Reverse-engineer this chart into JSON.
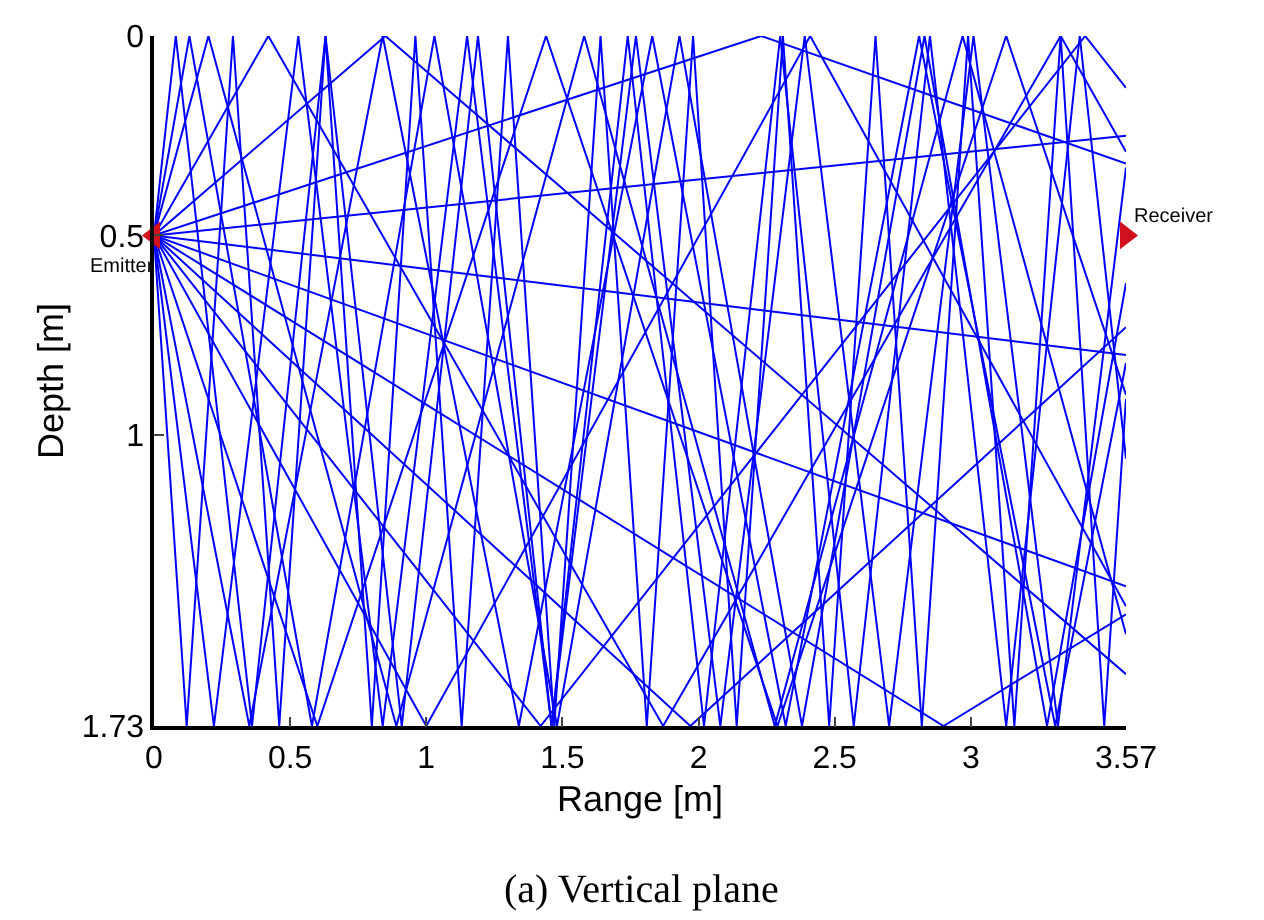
{
  "chart_data": {
    "type": "line",
    "title": "(a) Vertical plane",
    "xlabel": "Range [m]",
    "ylabel": "Depth [m]",
    "xlim": [
      0,
      3.57
    ],
    "xticks": [
      0,
      0.5,
      1,
      1.5,
      2,
      2.5,
      3,
      3.57
    ],
    "ylim": [
      1.73,
      0
    ],
    "yticks": [
      0,
      0.5,
      1,
      1.73
    ],
    "marker": "none",
    "annotations": [
      {
        "text": "Emitter",
        "x": 0,
        "y": 0.5
      },
      {
        "text": "Receiver",
        "x": 3.57,
        "y": 0.5
      }
    ],
    "series": [
      {
        "color": "#0000ff",
        "x": [
          0,
          0.08,
          0.36,
          0.63,
          0.91,
          1.19,
          1.46,
          1.74,
          2.02,
          2.3,
          2.57,
          2.85,
          3.13,
          3.4,
          3.57
        ],
        "values": [
          0.5,
          0,
          1.73,
          0,
          1.73,
          0,
          1.73,
          0,
          1.73,
          0,
          1.73,
          0,
          1.73,
          0,
          1.06
        ]
      },
      {
        "color": "#0000ff",
        "x": [
          0,
          0.13,
          0.58,
          1.03,
          1.48,
          1.93,
          2.38,
          2.83,
          3.28,
          3.57
        ],
        "values": [
          0.5,
          0,
          1.73,
          0,
          1.73,
          0,
          1.73,
          0,
          1.73,
          0.62
        ]
      },
      {
        "color": "#0000ff",
        "x": [
          0,
          0.2,
          0.89,
          1.58,
          2.28,
          2.97,
          3.57
        ],
        "values": [
          0.5,
          0,
          1.73,
          0,
          1.73,
          0,
          1.5
        ]
      },
      {
        "color": "#0000ff",
        "x": [
          0,
          0.42,
          1.87,
          3.33,
          3.57
        ],
        "values": [
          0.5,
          0,
          1.73,
          0,
          0.29
        ]
      },
      {
        "color": "#0000ff",
        "x": [
          0,
          0.85,
          3.57
        ],
        "values": [
          0.5,
          0,
          1.6
        ]
      },
      {
        "color": "#0000ff",
        "x": [
          0,
          2.23,
          3.57
        ],
        "values": [
          0.5,
          0,
          0.32
        ]
      },
      {
        "color": "#0000ff",
        "x": [
          0,
          3.57
        ],
        "values": [
          0.5,
          0.25
        ]
      },
      {
        "color": "#0000ff",
        "x": [
          0,
          3.57
        ],
        "values": [
          0.5,
          0.8
        ]
      },
      {
        "color": "#0000ff",
        "x": [
          0,
          3.57
        ],
        "values": [
          0.5,
          1.38
        ]
      },
      {
        "color": "#0000ff",
        "x": [
          0,
          0.12,
          0.29,
          0.46,
          0.63,
          0.8,
          0.96,
          1.13,
          1.3,
          1.47,
          1.64,
          1.81,
          1.98,
          2.14,
          2.31,
          2.48,
          2.65,
          2.82,
          2.99,
          3.16,
          3.33,
          3.49,
          3.57
        ],
        "values": [
          0.5,
          1.73,
          0,
          1.73,
          0,
          1.73,
          0,
          1.73,
          0,
          1.73,
          0,
          1.73,
          0,
          1.73,
          0,
          1.73,
          0,
          1.73,
          0,
          1.73,
          0,
          1.73,
          0.91
        ]
      },
      {
        "color": "#0000ff",
        "x": [
          0,
          0.22,
          0.53,
          0.84,
          1.15,
          1.46,
          1.77,
          2.08,
          2.39,
          2.7,
          3.01,
          3.32,
          3.57
        ],
        "values": [
          0.5,
          1.73,
          0,
          1.73,
          0,
          1.73,
          0,
          1.73,
          0,
          1.73,
          0,
          1.73,
          0.33
        ]
      },
      {
        "color": "#0000ff",
        "x": [
          0,
          0.35,
          0.84,
          1.34,
          1.83,
          2.32,
          2.81,
          3.31,
          3.57
        ],
        "values": [
          0.5,
          1.73,
          0,
          1.73,
          0,
          1.73,
          0,
          1.73,
          0.82
        ]
      },
      {
        "color": "#0000ff",
        "x": [
          0,
          0.6,
          1.44,
          2.29,
          3.13,
          3.57
        ],
        "values": [
          0.5,
          1.73,
          0,
          1.73,
          0,
          0.9
        ]
      },
      {
        "color": "#0000ff",
        "x": [
          0,
          1.0,
          2.41,
          3.57
        ],
        "values": [
          0.5,
          1.73,
          0,
          1.43
        ]
      },
      {
        "color": "#0000ff",
        "x": [
          0,
          1.42,
          3.42,
          3.57
        ],
        "values": [
          0.5,
          1.73,
          0,
          0.13
        ]
      },
      {
        "color": "#0000ff",
        "x": [
          0,
          1.97,
          3.57
        ],
        "values": [
          0.5,
          1.73,
          0.73
        ]
      },
      {
        "color": "#0000ff",
        "x": [
          0,
          2.9,
          3.57
        ],
        "values": [
          0.5,
          1.73,
          1.45
        ]
      }
    ]
  }
}
